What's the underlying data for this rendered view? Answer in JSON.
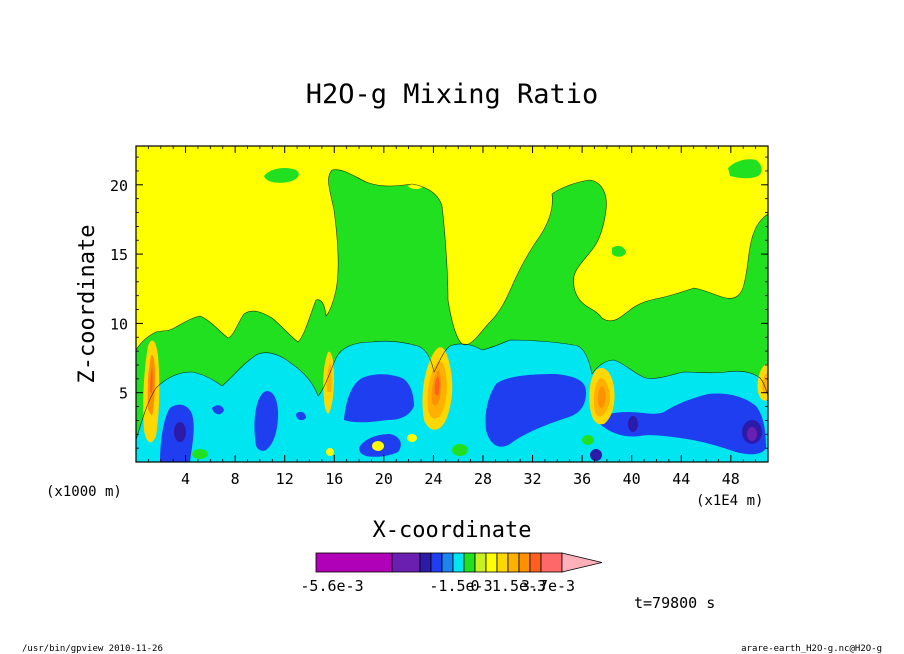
{
  "chart_data": {
    "type": "heatmap",
    "title": "H2O-g Mixing Ratio",
    "xlabel": "X-coordinate",
    "ylabel": "Z-coordinate",
    "x_unit_note": "(x1000 m)",
    "y_unit_note": "(x1E4 m)",
    "xlim": [
      0,
      51
    ],
    "ylim": [
      0,
      22.8
    ],
    "x_ticks": [
      4,
      8,
      12,
      16,
      20,
      24,
      28,
      32,
      36,
      40,
      44,
      48
    ],
    "y_ticks": [
      5,
      10,
      15,
      20
    ],
    "time_label": "t=79800 s",
    "colorbar": {
      "tick_labels": [
        "-5.6e-3",
        "-1.5e-3",
        "0",
        "1.5e-3",
        "3.7e-3"
      ],
      "levels": [
        -0.0056,
        -0.0023,
        -0.0019,
        -0.0015,
        -0.0011,
        -0.0007,
        -0.0004,
        0,
        0.0004,
        0.0007,
        0.0011,
        0.0015,
        0.0022,
        0.003,
        0.0037
      ],
      "colors": [
        "#b000b8",
        "#6a1fb0",
        "#2c1aa8",
        "#1e3ef0",
        "#1a86f0",
        "#00e6f0",
        "#20e020",
        "#c8f020",
        "#ffff00",
        "#ffd800",
        "#ffb000",
        "#ff9000",
        "#ff6020",
        "#ff6868",
        "#ffb0b8"
      ]
    },
    "regions": {
      "background_level": "0 to 4e-4 (yellow)",
      "upper_plumes": "green, rising to z~20",
      "lower_band": "cyan/blue negative anomalies below z~8",
      "positive_peaks_x": [
        1,
        16,
        24,
        38,
        51
      ]
    }
  },
  "footer": {
    "left": "/usr/bin/gpview  2010-11-26",
    "right": "arare-earth_H2O-g.nc@H2O-g"
  },
  "colors": {
    "yellow": "#ffff00",
    "green": "#20e020",
    "cyan": "#00e6f0",
    "blue": "#1e3ef0",
    "navy": "#2c1aa8",
    "orange": "#ffb000",
    "red": "#ff6020"
  }
}
